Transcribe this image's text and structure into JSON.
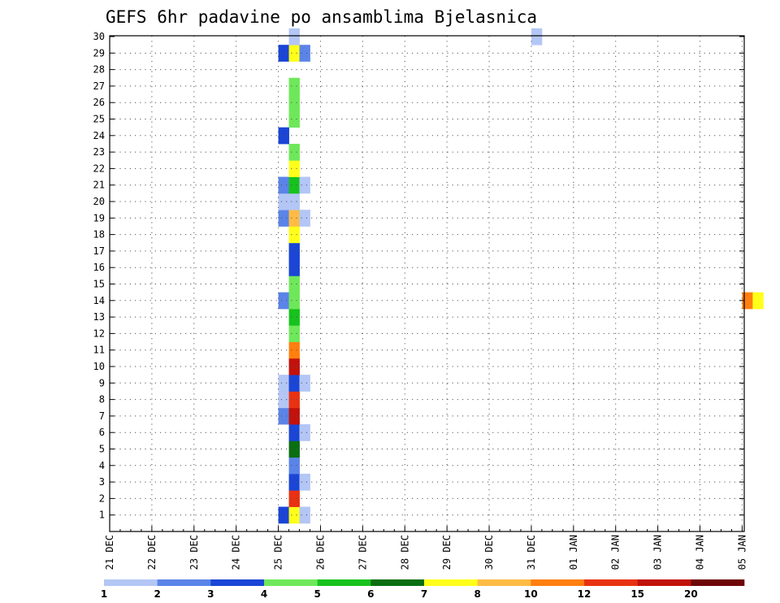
{
  "chart_data": {
    "type": "heatmap",
    "title": "GEFS 6hr padavine po ansamblima Bjelasnica",
    "xlabel": "",
    "ylabel": "",
    "x_tick_labels": [
      "21 DEC",
      "22 DEC",
      "23 DEC",
      "24 DEC",
      "25 DEC",
      "26 DEC",
      "27 DEC",
      "28 DEC",
      "29 DEC",
      "30 DEC",
      "31 DEC",
      "01 JAN",
      "02 JAN",
      "03 JAN",
      "04 JAN",
      "05 JAN"
    ],
    "y_tick_labels": [
      "1",
      "2",
      "3",
      "4",
      "5",
      "6",
      "7",
      "8",
      "9",
      "10",
      "11",
      "12",
      "13",
      "14",
      "15",
      "16",
      "17",
      "18",
      "19",
      "20",
      "21",
      "22",
      "23",
      "24",
      "25",
      "26",
      "27",
      "28",
      "29",
      "30"
    ],
    "ylim": [
      0,
      30
    ],
    "time_step_hours": 6,
    "steps_per_day": 4,
    "grid": true,
    "legend": "bottom colorbar",
    "colorbar": {
      "labels": [
        "1",
        "2",
        "3",
        "4",
        "5",
        "6",
        "7",
        "8",
        "10",
        "12",
        "15",
        "20"
      ],
      "colors": [
        "#b3c6f5",
        "#5b84e8",
        "#1a45d6",
        "#6ee85a",
        "#17c21d",
        "#0a6e12",
        "#ffff1a",
        "#ffbc45",
        "#ff7f0f",
        "#e83212",
        "#c2120c",
        "#6e0608"
      ]
    },
    "cells": [
      [
        1,
        4,
        0,
        2
      ],
      [
        1,
        4,
        1,
        6
      ],
      [
        1,
        4,
        2,
        0
      ],
      [
        2,
        4,
        1,
        9
      ],
      [
        3,
        4,
        1,
        2
      ],
      [
        3,
        4,
        2,
        0
      ],
      [
        4,
        4,
        1,
        1
      ],
      [
        5,
        4,
        1,
        5
      ],
      [
        6,
        4,
        1,
        2
      ],
      [
        6,
        4,
        2,
        0
      ],
      [
        7,
        4,
        0,
        1
      ],
      [
        7,
        4,
        1,
        10
      ],
      [
        8,
        4,
        0,
        0
      ],
      [
        8,
        4,
        1,
        9
      ],
      [
        9,
        4,
        0,
        0
      ],
      [
        9,
        4,
        1,
        2
      ],
      [
        9,
        4,
        2,
        0
      ],
      [
        10,
        4,
        1,
        10
      ],
      [
        11,
        4,
        1,
        8
      ],
      [
        12,
        4,
        1,
        3
      ],
      [
        13,
        4,
        1,
        4
      ],
      [
        14,
        4,
        0,
        1
      ],
      [
        14,
        4,
        1,
        3
      ],
      [
        15,
        4,
        1,
        3
      ],
      [
        16,
        4,
        1,
        2
      ],
      [
        17,
        4,
        1,
        2
      ],
      [
        18,
        4,
        1,
        6
      ],
      [
        19,
        4,
        0,
        1
      ],
      [
        19,
        4,
        1,
        7
      ],
      [
        19,
        4,
        2,
        0
      ],
      [
        20,
        4,
        0,
        0
      ],
      [
        20,
        4,
        1,
        0
      ],
      [
        21,
        4,
        0,
        1
      ],
      [
        21,
        4,
        1,
        4
      ],
      [
        21,
        4,
        2,
        0
      ],
      [
        22,
        4,
        1,
        6
      ],
      [
        23,
        4,
        1,
        3
      ],
      [
        24,
        4,
        0,
        2
      ],
      [
        25,
        4,
        1,
        3
      ],
      [
        26,
        4,
        1,
        3
      ],
      [
        27,
        4,
        1,
        3
      ],
      [
        29,
        4,
        0,
        2
      ],
      [
        29,
        4,
        1,
        6
      ],
      [
        29,
        4,
        2,
        1
      ],
      [
        30,
        4,
        1,
        0
      ],
      [
        30,
        10,
        0,
        0
      ],
      [
        14,
        15,
        0,
        8
      ],
      [
        14,
        15,
        1,
        6
      ],
      [
        21,
        16,
        0,
        2
      ],
      [
        21,
        16,
        1,
        2
      ],
      [
        22,
        16,
        0,
        2
      ],
      [
        9,
        17,
        0,
        0
      ],
      [
        9,
        17,
        1,
        0
      ],
      [
        6,
        18,
        0,
        0
      ],
      [
        6,
        18,
        1,
        1
      ],
      [
        19,
        17,
        0,
        0
      ],
      [
        19,
        17,
        1,
        0
      ],
      [
        19,
        17,
        2,
        0
      ],
      [
        19,
        18,
        0,
        0
      ],
      [
        20,
        18,
        0,
        0
      ],
      [
        20,
        18,
        1,
        1
      ],
      [
        13,
        18,
        1,
        0
      ],
      [
        13,
        18,
        2,
        0
      ],
      [
        13,
        19,
        0,
        0
      ],
      [
        13,
        19,
        1,
        2
      ],
      [
        8,
        19,
        1,
        4
      ],
      [
        8,
        19,
        2,
        0
      ],
      [
        9,
        19,
        1,
        0
      ],
      [
        1,
        19,
        2,
        0
      ],
      [
        1,
        19,
        3,
        0
      ],
      [
        1,
        20,
        0,
        1
      ],
      [
        1,
        20,
        1,
        0
      ],
      [
        1,
        20,
        2,
        0
      ],
      [
        1,
        20,
        3,
        0
      ],
      [
        2,
        21,
        1,
        0
      ],
      [
        3,
        20,
        2,
        9
      ],
      [
        3,
        20,
        3,
        1
      ],
      [
        4,
        21,
        0,
        2
      ],
      [
        4,
        21,
        1,
        0
      ],
      [
        8,
        21,
        1,
        1
      ],
      [
        8,
        21,
        2,
        1
      ],
      [
        8,
        21,
        3,
        9
      ],
      [
        8,
        22,
        0,
        7
      ],
      [
        8,
        22,
        1,
        0
      ],
      [
        8,
        22,
        2,
        1
      ],
      [
        8,
        22,
        3,
        0
      ],
      [
        8,
        23,
        0,
        0
      ],
      [
        8,
        23,
        1,
        0
      ],
      [
        8,
        23,
        2,
        0
      ],
      [
        8,
        23,
        3,
        0
      ],
      [
        10,
        20,
        3,
        0
      ],
      [
        10,
        21,
        0,
        5
      ],
      [
        11,
        20,
        3,
        0
      ],
      [
        11,
        21,
        0,
        0
      ],
      [
        11,
        21,
        2,
        1
      ],
      [
        11,
        21,
        3,
        9
      ],
      [
        11,
        22,
        0,
        11
      ],
      [
        11,
        22,
        1,
        1
      ],
      [
        11,
        22,
        3,
        0
      ],
      [
        11,
        23,
        3,
        0
      ],
      [
        10,
        22,
        2,
        5
      ],
      [
        12,
        22,
        3,
        2
      ],
      [
        12,
        23,
        0,
        2
      ],
      [
        12,
        23,
        1,
        2
      ],
      [
        12,
        23,
        2,
        5
      ],
      [
        12,
        23,
        3,
        3
      ],
      [
        13,
        20,
        0,
        0
      ],
      [
        13,
        20,
        1,
        0
      ],
      [
        13,
        20,
        2,
        0
      ],
      [
        13,
        20,
        3,
        2
      ],
      [
        13,
        21,
        3,
        1
      ],
      [
        13,
        22,
        0,
        0
      ],
      [
        13,
        22,
        1,
        1
      ],
      [
        14,
        22,
        2,
        1
      ],
      [
        14,
        22,
        3,
        3
      ],
      [
        14,
        22,
        1,
        0
      ],
      [
        14,
        22,
        0,
        3
      ],
      [
        16,
        20,
        2,
        1
      ],
      [
        16,
        20,
        3,
        2
      ],
      [
        16,
        21,
        0,
        0
      ],
      [
        16,
        21,
        1,
        1
      ],
      [
        16,
        21,
        2,
        4
      ],
      [
        16,
        21,
        3,
        5
      ],
      [
        16,
        22,
        0,
        10
      ],
      [
        16,
        22,
        1,
        10
      ],
      [
        16,
        22,
        2,
        1
      ],
      [
        17,
        22,
        0,
        0
      ],
      [
        17,
        21,
        2,
        0
      ],
      [
        17,
        21,
        3,
        2
      ],
      [
        18,
        23,
        0,
        4
      ],
      [
        18,
        23,
        1,
        3
      ],
      [
        18,
        23,
        2,
        1
      ],
      [
        18,
        23,
        3,
        0
      ],
      [
        17,
        23,
        0,
        0
      ],
      [
        17,
        22,
        2,
        0
      ],
      [
        20,
        20,
        2,
        0
      ],
      [
        20,
        20,
        3,
        1
      ],
      [
        20,
        21,
        0,
        2
      ],
      [
        20,
        21,
        1,
        0
      ],
      [
        20,
        21,
        2,
        9
      ],
      [
        20,
        21,
        3,
        11
      ],
      [
        20,
        22,
        0,
        10
      ],
      [
        20,
        22,
        1,
        0
      ],
      [
        20,
        22,
        2,
        0
      ],
      [
        20,
        22,
        3,
        0
      ],
      [
        21,
        22,
        0,
        5
      ],
      [
        21,
        22,
        1,
        11
      ],
      [
        21,
        22,
        2,
        2
      ],
      [
        22,
        20,
        2,
        2
      ],
      [
        22,
        20,
        3,
        0
      ],
      [
        22,
        21,
        1,
        0
      ],
      [
        22,
        22,
        3,
        8
      ],
      [
        22,
        22,
        2,
        9
      ],
      [
        22,
        23,
        0,
        2
      ],
      [
        22,
        23,
        1,
        0
      ],
      [
        23,
        22,
        3,
        9
      ],
      [
        23,
        22,
        2,
        8
      ],
      [
        23,
        23,
        0,
        4
      ],
      [
        23,
        24,
        0,
        2
      ],
      [
        25,
        20,
        0,
        0
      ],
      [
        25,
        20,
        1,
        0
      ],
      [
        25,
        20,
        2,
        1
      ],
      [
        25,
        20,
        3,
        0
      ],
      [
        25,
        21,
        0,
        0
      ],
      [
        26,
        20,
        0,
        9
      ],
      [
        26,
        20,
        1,
        1
      ],
      [
        26,
        21,
        1,
        1
      ],
      [
        26,
        23,
        0,
        0
      ],
      [
        26,
        23,
        3,
        9
      ],
      [
        27,
        20,
        0,
        0
      ],
      [
        27,
        21,
        2,
        4
      ],
      [
        27,
        21,
        3,
        5
      ],
      [
        27,
        22,
        0,
        8
      ],
      [
        27,
        23,
        1,
        0
      ],
      [
        28,
        19,
        3,
        0
      ],
      [
        28,
        20,
        2,
        4
      ],
      [
        28,
        21,
        0,
        0
      ],
      [
        28,
        21,
        1,
        0
      ],
      [
        28,
        21,
        2,
        0
      ],
      [
        28,
        21,
        3,
        0
      ],
      [
        28,
        23,
        2,
        2
      ],
      [
        28,
        23,
        3,
        2
      ],
      [
        29,
        23,
        0,
        3
      ],
      [
        29,
        23,
        1,
        3
      ],
      [
        29,
        23,
        2,
        3
      ],
      [
        29,
        23,
        3,
        0
      ],
      [
        30,
        23,
        3,
        0
      ]
    ]
  }
}
